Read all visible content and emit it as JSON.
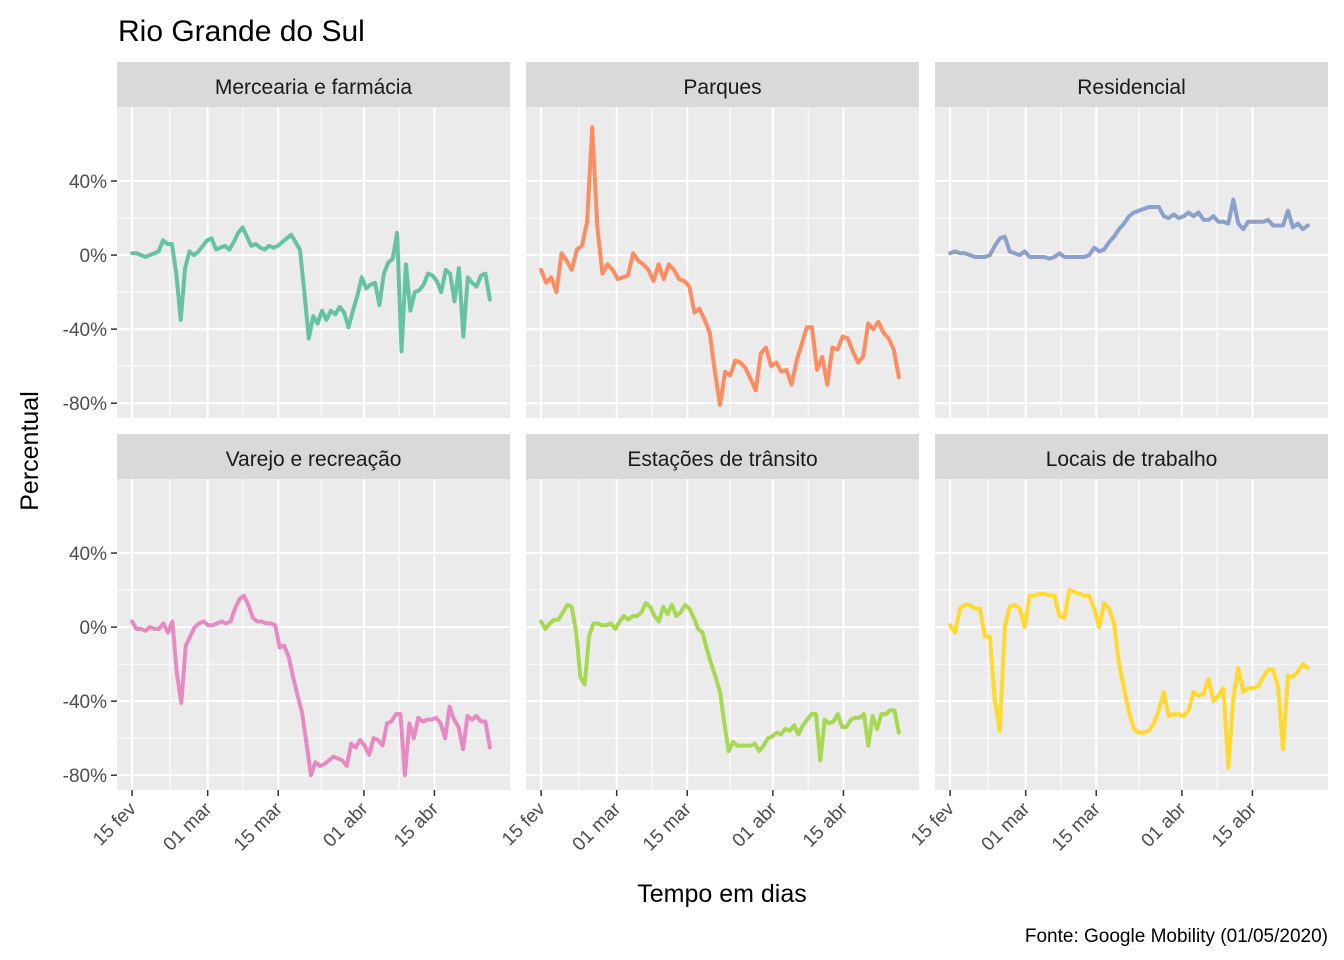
{
  "chart_data": {
    "type": "line",
    "title": "Rio Grande do Sul",
    "xlabel": "Tempo em dias",
    "ylabel": "Percentual",
    "caption": "Fonte: Google Mobility (01/05/2020)",
    "ylim": [
      -88,
      80
    ],
    "yticks": [
      {
        "value": 40,
        "label": "40%"
      },
      {
        "value": 0,
        "label": "0%"
      },
      {
        "value": -40,
        "label": "-40%"
      },
      {
        "value": -80,
        "label": "-80%"
      }
    ],
    "xlim": [
      "2020-02-12",
      "2020-04-30"
    ],
    "xticks": [
      {
        "date": "2020-02-15",
        "label": "15 fev"
      },
      {
        "date": "2020-03-01",
        "label": "01 mar"
      },
      {
        "date": "2020-03-15",
        "label": "15 mar"
      },
      {
        "date": "2020-04-01",
        "label": "01 abr"
      },
      {
        "date": "2020-04-15",
        "label": "15 abr"
      }
    ],
    "date_range": [
      "2020-02-15",
      "2020-04-26"
    ],
    "grid": true,
    "legend": "none",
    "panels": [
      {
        "name": "Mercearia e farmácia",
        "color": "#66C2A5",
        "values": [
          1,
          1,
          0,
          -1,
          0,
          1,
          2,
          8,
          6,
          6,
          -10,
          -35,
          -7,
          2,
          0,
          2,
          5,
          8,
          9,
          3,
          4,
          5,
          3,
          7,
          12,
          15,
          10,
          5,
          6,
          4,
          3,
          5,
          4,
          5,
          7,
          9,
          11,
          7,
          3,
          -20,
          -45,
          -33,
          -37,
          -30,
          -35,
          -30,
          -32,
          -28,
          -31,
          -39,
          -30,
          -22,
          -12,
          -18,
          -16,
          -15,
          -27,
          -10,
          -4,
          -2,
          12,
          -52,
          -5,
          -30,
          -20,
          -19,
          -16,
          -10,
          -11,
          -14,
          -20,
          -8,
          -10,
          -25,
          -7,
          -44,
          -12,
          -15,
          -17,
          -11,
          -10,
          -24
        ]
      },
      {
        "name": "Parques",
        "color": "#FC8D62",
        "values": [
          -8,
          -15,
          -12,
          -20,
          1,
          -3,
          -8,
          3,
          5,
          18,
          69,
          15,
          -10,
          -5,
          -8,
          -13,
          -12,
          -11,
          1,
          -3,
          -5,
          -8,
          -14,
          -5,
          -13,
          -5,
          -8,
          -13,
          -14,
          -17,
          -31,
          -29,
          -35,
          -42,
          -63,
          -81,
          -63,
          -65,
          -57,
          -58,
          -61,
          -67,
          -73,
          -53,
          -50,
          -60,
          -58,
          -63,
          -62,
          -70,
          -57,
          -48,
          -39,
          -39,
          -62,
          -55,
          -70,
          -50,
          -51,
          -44,
          -45,
          -52,
          -58,
          -55,
          -37,
          -40,
          -36,
          -42,
          -45,
          -51,
          -66
        ]
      },
      {
        "name": "Residencial",
        "color": "#8DA0CB",
        "values": [
          1,
          2,
          1,
          1,
          0,
          -1,
          -1,
          -1,
          0,
          5,
          9,
          10,
          2,
          1,
          0,
          2,
          -1,
          -1,
          -1,
          -1,
          -2,
          -1,
          1,
          -1,
          -1,
          -1,
          -1,
          -1,
          0,
          4,
          2,
          3,
          7,
          10,
          14,
          17,
          21,
          23,
          24,
          25,
          26,
          26,
          26,
          21,
          20,
          22,
          20,
          21,
          23,
          21,
          23,
          19,
          19,
          21,
          18,
          18,
          17,
          30,
          17,
          14,
          18,
          18,
          18,
          18,
          19,
          16,
          16,
          16,
          24,
          15,
          17,
          14,
          16
        ]
      },
      {
        "name": "Varejo e recreação",
        "color": "#E78AC3",
        "values": [
          3,
          -1,
          -1,
          -2,
          0,
          -1,
          -1,
          2,
          -3,
          3,
          -25,
          -41,
          -10,
          -5,
          0,
          2,
          3,
          1,
          1,
          2,
          3,
          2,
          3,
          10,
          15,
          17,
          12,
          5,
          3,
          3,
          2,
          2,
          1,
          -11,
          -10,
          -16,
          -27,
          -37,
          -46,
          -63,
          -80,
          -73,
          -75,
          -74,
          -72,
          -70,
          -71,
          -72,
          -75,
          -63,
          -65,
          -61,
          -64,
          -69,
          -60,
          -61,
          -64,
          -52,
          -51,
          -47,
          -47,
          -80,
          -52,
          -60,
          -49,
          -51,
          -50,
          -50,
          -49,
          -52,
          -60,
          -43,
          -50,
          -54,
          -66,
          -48,
          -50,
          -48,
          -51,
          -51,
          -65
        ]
      },
      {
        "name": "Estações de trânsito",
        "color": "#A6D854",
        "values": [
          3,
          -1,
          2,
          4,
          4,
          8,
          12,
          11,
          -2,
          -27,
          -31,
          -5,
          2,
          2,
          1,
          1,
          2,
          -1,
          3,
          6,
          4,
          6,
          6,
          8,
          13,
          11,
          6,
          3,
          11,
          7,
          12,
          6,
          8,
          12,
          10,
          5,
          -1,
          -3,
          -12,
          -20,
          -27,
          -35,
          -52,
          -67,
          -62,
          -64,
          -64,
          -64,
          -64,
          -63,
          -67,
          -64,
          -60,
          -59,
          -57,
          -58,
          -55,
          -56,
          -53,
          -58,
          -53,
          -50,
          -47,
          -47,
          -72,
          -50,
          -52,
          -51,
          -47,
          -54,
          -54,
          -50,
          -49,
          -49,
          -47,
          -64,
          -48,
          -55,
          -47,
          -47,
          -45,
          -45,
          -57
        ]
      },
      {
        "name": "Locais de trabalho",
        "color": "#FFD92F",
        "values": [
          1,
          -3,
          10,
          12,
          12,
          10,
          10,
          -5,
          -5,
          -40,
          -56,
          0,
          11,
          12,
          10,
          0,
          17,
          17,
          18,
          18,
          17,
          17,
          6,
          5,
          20,
          19,
          18,
          17,
          17,
          10,
          0,
          13,
          10,
          2,
          -20,
          -33,
          -46,
          -55,
          -57,
          -57,
          -56,
          -52,
          -45,
          -35,
          -48,
          -47,
          -47,
          -48,
          -45,
          -35,
          -37,
          -36,
          -28,
          -40,
          -37,
          -33,
          -76,
          -38,
          -22,
          -35,
          -33,
          -33,
          -32,
          -27,
          -23,
          -23,
          -32,
          -66,
          -26,
          -27,
          -24,
          -20,
          -22
        ]
      }
    ]
  }
}
